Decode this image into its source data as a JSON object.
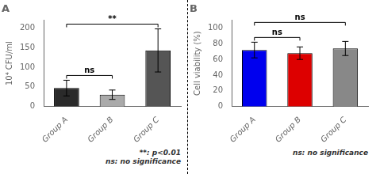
{
  "chart_data": [
    {
      "type": "bar",
      "title": "A",
      "categories": [
        "Group A",
        "Group B",
        "Group C"
      ],
      "values": [
        47,
        30,
        143
      ],
      "errors": [
        20,
        12,
        55
      ],
      "ylabel": "10⁴ CFU/ml",
      "ylim": [
        0,
        220
      ],
      "yticks": [
        0,
        50,
        100,
        150,
        200
      ],
      "colors": [
        "#2a2a2a",
        "#aaaaaa",
        "#555555"
      ],
      "grid": false,
      "annotations": [
        {
          "text": "ns",
          "from": "Group A",
          "to": "Group B"
        },
        {
          "text": "**",
          "from": "Group A",
          "to": "Group C"
        }
      ],
      "notes": [
        "**: p<0.01",
        "ns: no significance"
      ]
    },
    {
      "type": "bar",
      "title": "B",
      "categories": [
        "Group A",
        "Group B",
        "Group C"
      ],
      "values": [
        72,
        68,
        74
      ],
      "errors": [
        10,
        8,
        9
      ],
      "ylabel": "Cell viability (%)",
      "ylim": [
        0,
        110
      ],
      "yticks": [
        0,
        20,
        40,
        60,
        80,
        100
      ],
      "colors": [
        "#0000ee",
        "#dd0000",
        "#888888"
      ],
      "grid": false,
      "annotations": [
        {
          "text": "ns",
          "from": "Group A",
          "to": "Group B"
        },
        {
          "text": "ns",
          "from": "Group A",
          "to": "Group C"
        }
      ],
      "notes": [
        "ns: no significance"
      ]
    }
  ]
}
